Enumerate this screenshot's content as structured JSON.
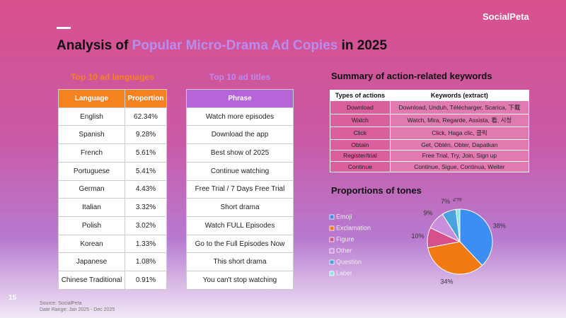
{
  "logo": "SocialPeta",
  "page_number": "15",
  "header": {
    "title_parts": [
      "Analysis of ",
      "Popular Micro-Drama Ad Copies",
      " in 2025"
    ]
  },
  "languages": {
    "title": "Top 10 ad languages",
    "columns": [
      "Language",
      "Proportion"
    ],
    "rows": [
      [
        "English",
        "62.34%"
      ],
      [
        "Spanish",
        "9.28%"
      ],
      [
        "French",
        "5.61%"
      ],
      [
        "Portuguese",
        "5.41%"
      ],
      [
        "German",
        "4.43%"
      ],
      [
        "Italian",
        "3.32%"
      ],
      [
        "Polish",
        "3.02%"
      ],
      [
        "Korean",
        "1.33%"
      ],
      [
        "Japanese",
        "1.08%"
      ],
      [
        "Chinese Traditional",
        "0.91%"
      ]
    ]
  },
  "titles": {
    "title": "Top 10 ad titles",
    "columns": [
      "Phrase"
    ],
    "rows": [
      [
        "Watch more episodes"
      ],
      [
        "Download the app"
      ],
      [
        "Best show of 2025"
      ],
      [
        "Continue watching"
      ],
      [
        "Free Trial / 7 Days Free Trial"
      ],
      [
        "Short drama"
      ],
      [
        "Watch FULL Episodes"
      ],
      [
        "Go to the Full Episodes Now"
      ],
      [
        "This short drama"
      ],
      [
        "You can't stop watching"
      ]
    ]
  },
  "keywords": {
    "title": "Summary of action-related keywords",
    "columns": [
      "Types of actions",
      "Keywords (extract)"
    ],
    "rows": [
      [
        "Download",
        "Download, Unduh, Télécharger, Scarica, 下載"
      ],
      [
        "Watch",
        "Watch, Mira, Regarde, Assista, 看, 시청"
      ],
      [
        "Click",
        "Click, Haga clic, 클릭"
      ],
      [
        "Obtain",
        "Get, Obtén, Obter, Dapatkan"
      ],
      [
        "Register/trial",
        "Free Trial, Try, Join, Sign up"
      ],
      [
        "Continue",
        "Continue, Sigue, Continua, Weiter"
      ]
    ]
  },
  "chart_data": {
    "type": "pie",
    "title": "Proportions of tones",
    "categories": [
      "Emoji",
      "Exclamation",
      "Figure",
      "Other",
      "Question",
      "Label"
    ],
    "values": [
      38,
      34,
      10,
      9,
      7,
      2
    ],
    "value_labels": [
      "38%",
      "34%",
      "10%",
      "9%",
      "7%",
      "2%"
    ],
    "colors": [
      "#3d8ef2",
      "#f27a12",
      "#d6508c",
      "#c98fdc",
      "#4aa3de",
      "#8fe6e2"
    ]
  },
  "footer": {
    "source": "Source: SocialPeta",
    "date_range": "Date Range: Jan 2025 - Dec 2025"
  }
}
